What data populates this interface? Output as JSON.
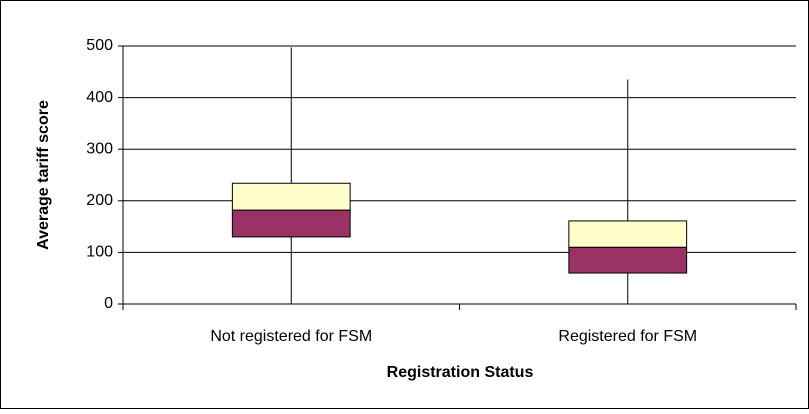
{
  "chart_data": {
    "type": "box",
    "categories": [
      "Not registered for FSM",
      "Registered for FSM"
    ],
    "min": [
      0,
      0
    ],
    "q1": [
      130,
      60
    ],
    "median": [
      182,
      110
    ],
    "q3": [
      234,
      161
    ],
    "max": [
      497,
      435
    ],
    "lower_color": "#993366",
    "upper_color": "#ffffcc",
    "ylim": [
      0,
      500
    ],
    "yticks": [
      0,
      100,
      200,
      300,
      400,
      500
    ],
    "grid": true,
    "ylabel": "Average tariff score",
    "xlabel": "Registration Status"
  }
}
